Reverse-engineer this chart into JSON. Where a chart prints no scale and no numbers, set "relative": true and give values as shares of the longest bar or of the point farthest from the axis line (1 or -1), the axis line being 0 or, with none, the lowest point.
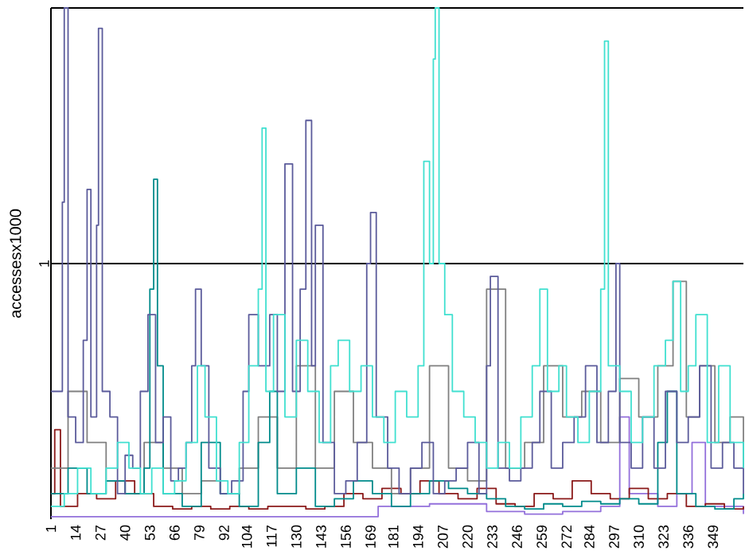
{
  "chart_data": {
    "type": "step",
    "ylabel": "accessesx1000",
    "xlim": [
      1,
      365
    ],
    "relative": true,
    "xticks": [
      1,
      14,
      27,
      40,
      53,
      66,
      79,
      92,
      104,
      117,
      130,
      143,
      156,
      169,
      181,
      194,
      207,
      220,
      233,
      246,
      259,
      272,
      284,
      297,
      310,
      323,
      336,
      349
    ],
    "ref_lines": [
      {
        "axis": "y",
        "value": 0.5,
        "label": "1",
        "color": "#000000"
      },
      {
        "axis": "y",
        "value": 1,
        "color": "#000000"
      }
    ],
    "marker": "none",
    "series": [
      {
        "color": "#9370db",
        "x": [
          1,
          100,
          172,
          173,
          200,
          230,
          250,
          270,
          290,
          300,
          305,
          320,
          330,
          338,
          345,
          365
        ],
        "values": [
          0.005,
          0.005,
          0.005,
          0.025,
          0.03,
          0.015,
          0.01,
          0.015,
          0.025,
          0.2,
          0.05,
          0.025,
          0.05,
          0.15,
          0.025,
          0.01
        ]
      },
      {
        "color": "#8b1a1a",
        "x": [
          1,
          3,
          6,
          15,
          25,
          35,
          45,
          55,
          65,
          75,
          85,
          95,
          105,
          115,
          125,
          135,
          145,
          155,
          165,
          175,
          185,
          195,
          205,
          215,
          225,
          235,
          245,
          255,
          265,
          275,
          285,
          295,
          305,
          315,
          325,
          335,
          345,
          355,
          365
        ],
        "values": [
          0.05,
          0.175,
          0.025,
          0.05,
          0.04,
          0.075,
          0.05,
          0.025,
          0.02,
          0.025,
          0.02,
          0.025,
          0.02,
          0.025,
          0.025,
          0.02,
          0.025,
          0.05,
          0.04,
          0.06,
          0.05,
          0.075,
          0.05,
          0.04,
          0.06,
          0.03,
          0.025,
          0.05,
          0.04,
          0.075,
          0.05,
          0.04,
          0.06,
          0.04,
          0.05,
          0.025,
          0.03,
          0.02,
          0.025
        ]
      },
      {
        "color": "#808080",
        "x": [
          1,
          10,
          20,
          30,
          40,
          50,
          60,
          70,
          80,
          90,
          100,
          110,
          120,
          130,
          140,
          150,
          160,
          170,
          180,
          190,
          200,
          210,
          220,
          230,
          240,
          250,
          260,
          270,
          280,
          290,
          300,
          310,
          320,
          328,
          335,
          342,
          350,
          358,
          365
        ],
        "values": [
          0.1,
          0.25,
          0.15,
          0.075,
          0.05,
          0.15,
          0.1,
          0.05,
          0.075,
          0.05,
          0.1,
          0.2,
          0.1,
          0.3,
          0.1,
          0.25,
          0.15,
          0.1,
          0.05,
          0.1,
          0.3,
          0.1,
          0.075,
          0.45,
          0.1,
          0.15,
          0.3,
          0.2,
          0.25,
          0.15,
          0.275,
          0.2,
          0.3,
          0.465,
          0.2,
          0.3,
          0.15,
          0.2,
          0.1
        ]
      },
      {
        "color": "#008b8b",
        "x": [
          1,
          10,
          20,
          30,
          40,
          50,
          53,
          55,
          57,
          60,
          70,
          80,
          90,
          100,
          110,
          116,
          120,
          130,
          140,
          150,
          160,
          170,
          180,
          190,
          200,
          210,
          220,
          230,
          240,
          250,
          260,
          270,
          280,
          290,
          300,
          310,
          320,
          325,
          330,
          340,
          350,
          360,
          365
        ],
        "values": [
          0.05,
          0.1,
          0.05,
          0.075,
          0.05,
          0.1,
          0.45,
          0.665,
          0.3,
          0.05,
          0.025,
          0.15,
          0.05,
          0.025,
          0.15,
          0.25,
          0.05,
          0.1,
          0.025,
          0.04,
          0.075,
          0.05,
          0.025,
          0.05,
          0.075,
          0.06,
          0.05,
          0.04,
          0.025,
          0.02,
          0.03,
          0.025,
          0.035,
          0.03,
          0.04,
          0.03,
          0.15,
          0.25,
          0.05,
          0.025,
          0.02,
          0.04,
          0.05
        ]
      },
      {
        "color": "#5b5b9b",
        "x": [
          1,
          5,
          7,
          8,
          10,
          14,
          18,
          20,
          22,
          25,
          26,
          28,
          32,
          36,
          40,
          44,
          48,
          52,
          56,
          60,
          64,
          68,
          72,
          75,
          77,
          80,
          84,
          90,
          96,
          102,
          105,
          110,
          116,
          120,
          124,
          128,
          132,
          135,
          138,
          140,
          144,
          150,
          156,
          162,
          167,
          169,
          172,
          178,
          184,
          190,
          196,
          202,
          208,
          214,
          220,
          226,
          230,
          232,
          236,
          242,
          248,
          254,
          258,
          264,
          270,
          276,
          282,
          288,
          294,
          298,
          300,
          306,
          312,
          318,
          324,
          330,
          336,
          342,
          348,
          354,
          360,
          365
        ],
        "values": [
          0.25,
          0.25,
          0.62,
          1,
          0.2,
          0.15,
          0.35,
          0.645,
          0.2,
          0.575,
          0.96,
          0.25,
          0.2,
          0.05,
          0.125,
          0.1,
          0.25,
          0.4,
          0.15,
          0.2,
          0.075,
          0.1,
          0.15,
          0.3,
          0.45,
          0.3,
          0.1,
          0.05,
          0.075,
          0.25,
          0.4,
          0.3,
          0.4,
          0.25,
          0.695,
          0.25,
          0.45,
          0.78,
          0.3,
          0.575,
          0.15,
          0.05,
          0.075,
          0.15,
          0.5,
          0.6,
          0.2,
          0.1,
          0.05,
          0.1,
          0.15,
          0.05,
          0.075,
          0.1,
          0.15,
          0.05,
          0.3,
          0.475,
          0.1,
          0.075,
          0.1,
          0.15,
          0.25,
          0.1,
          0.15,
          0.2,
          0.3,
          0.15,
          0.25,
          0.5,
          0.15,
          0.1,
          0.2,
          0.1,
          0.25,
          0.15,
          0.2,
          0.3,
          0.1,
          0.15,
          0.1,
          0.05
        ]
      },
      {
        "color": "#40e0d0",
        "x": [
          1,
          8,
          15,
          22,
          30,
          36,
          42,
          48,
          54,
          60,
          66,
          72,
          78,
          82,
          88,
          94,
          100,
          105,
          110,
          112,
          114,
          118,
          124,
          130,
          136,
          142,
          148,
          152,
          158,
          164,
          170,
          176,
          182,
          188,
          194,
          197,
          200,
          202,
          203,
          205,
          208,
          212,
          218,
          224,
          230,
          236,
          242,
          248,
          254,
          258,
          262,
          268,
          272,
          278,
          284,
          290,
          292,
          294,
          300,
          306,
          312,
          318,
          324,
          328,
          332,
          336,
          340,
          346,
          352,
          358,
          365
        ],
        "values": [
          0.025,
          0.05,
          0.1,
          0.05,
          0.1,
          0.15,
          0.1,
          0.05,
          0.1,
          0.05,
          0.075,
          0.15,
          0.3,
          0.2,
          0.075,
          0.05,
          0.15,
          0.3,
          0.45,
          0.765,
          0.25,
          0.4,
          0.2,
          0.35,
          0.25,
          0.15,
          0.3,
          0.35,
          0.25,
          0.3,
          0.2,
          0.15,
          0.25,
          0.2,
          0.3,
          0.7,
          0.5,
          0.9,
          1,
          0.5,
          0.4,
          0.25,
          0.2,
          0.15,
          0.1,
          0.15,
          0.1,
          0.2,
          0.3,
          0.45,
          0.25,
          0.3,
          0.2,
          0.15,
          0.25,
          0.45,
          0.935,
          0.3,
          0.25,
          0.15,
          0.2,
          0.3,
          0.35,
          0.465,
          0.25,
          0.3,
          0.4,
          0.15,
          0.3,
          0.15,
          0.1
        ]
      }
    ]
  }
}
